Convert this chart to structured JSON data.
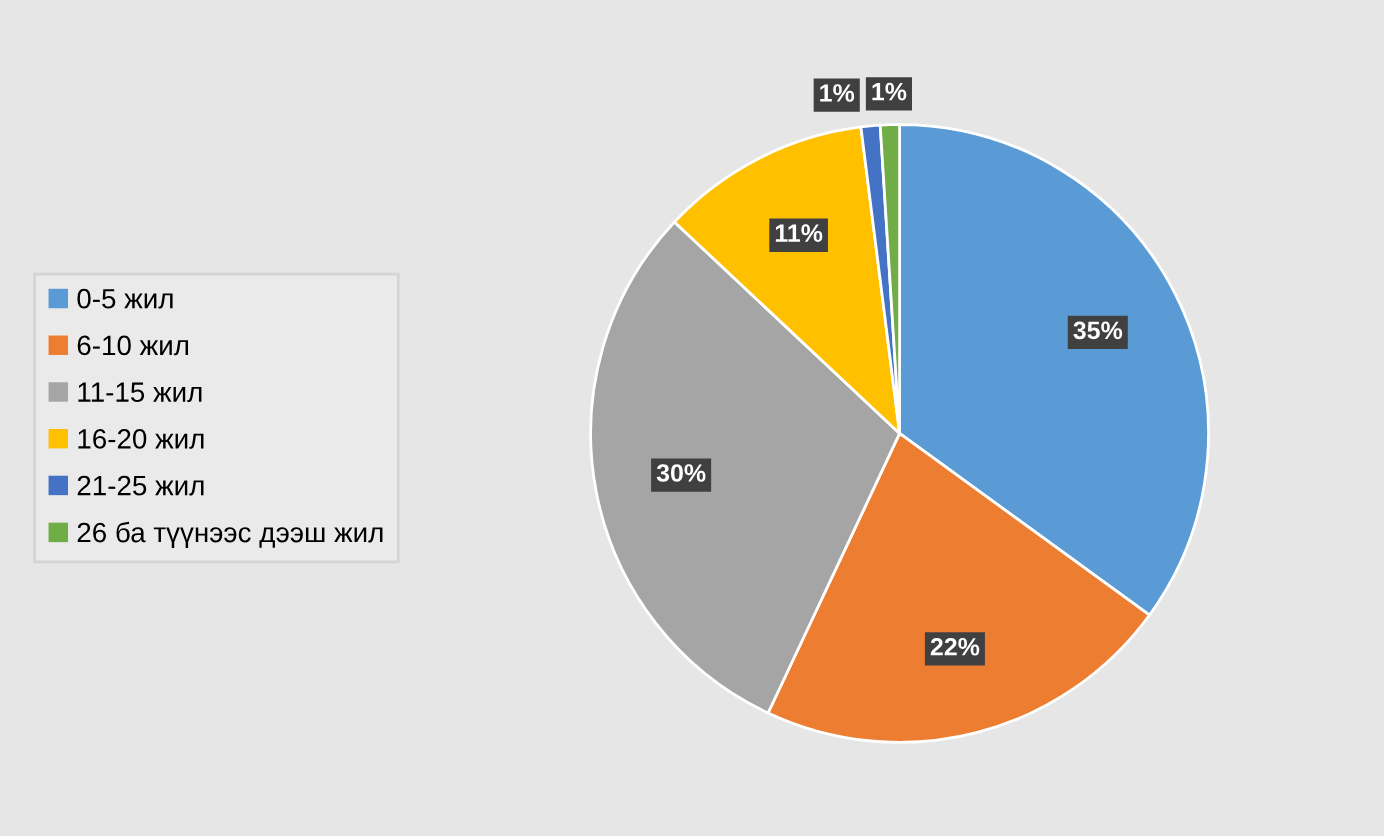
{
  "chart_data": {
    "type": "pie",
    "categories": [
      "0-5 жил",
      "6-10 жил",
      "11-15 жил",
      "16-20 жил",
      "21-25 жил",
      "26 ба түүнээс дээш жил"
    ],
    "values": [
      35,
      22,
      30,
      11,
      1,
      1
    ],
    "value_labels": [
      "35%",
      "22%",
      "30%",
      "11%",
      "1%",
      "1%"
    ],
    "colors": [
      "#5b9bd5",
      "#ed7d31",
      "#a5a5a5",
      "#ffc000",
      "#4472c4",
      "#70ad47"
    ],
    "legend": "left"
  }
}
